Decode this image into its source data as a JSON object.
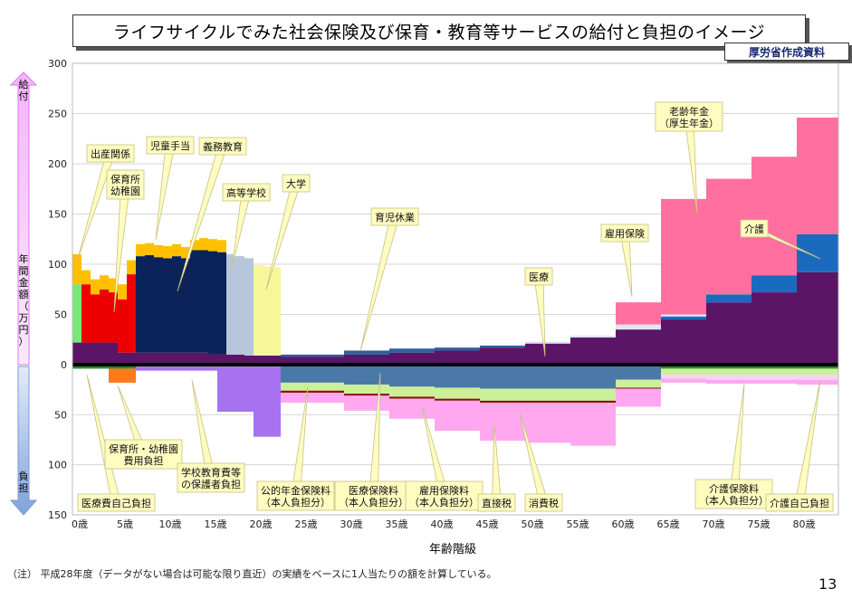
{
  "title": "ライフサイクルでみた社会保険及び保育・教育等サービスの給付と負担のイメージ",
  "source_badge": "厚労省作成資料",
  "footnote": "（注） 平成28年度（データがない場合は可能な限り直近）の実績をベースに1人当たりの額を計算している。",
  "page_number": "13",
  "side_labels": {
    "benefit": "給付",
    "burden": "負担",
    "ylabel": "年間金額（万円）"
  },
  "colors": {
    "childbirth": "#7be57b",
    "nursery": "#ee0000",
    "child_allowance": "#ffc000",
    "compulsory_edu": "#0b2358",
    "high_school": "#b7c5dd",
    "university": "#f7f79a",
    "parental_leave": "#2f5f9e",
    "medical": "#5b1567",
    "employment": "#dfe6f2",
    "pension": "#ff6fa0",
    "care": "#1a6bbe",
    "burden_pension": "#4a79a8",
    "burden_medical": "#ccf09a",
    "burden_employment": "#8b1010",
    "burden_direct_tax": "#ffa8f0",
    "burden_consumption": "#ff8df0",
    "burden_nursery": "#ff7b1a",
    "burden_school": "#a672f0",
    "burden_care_premium": "#f5d3f5",
    "burden_care_copay": "#2a8a2a",
    "benefit_arrow": "#f18cff",
    "burden_arrow": "#a9c0e8"
  },
  "chart_data": {
    "type": "area",
    "title": "ライフサイクルでみた社会保険及び保育・教育等サービスの給付と負担のイメージ",
    "xlabel": "年齢階級",
    "ylabel": "年間金額（万円）",
    "x_ticks": [
      "0歳",
      "5歳",
      "10歳",
      "15歳",
      "20歳",
      "25歳",
      "30歳",
      "35歳",
      "40歳",
      "45歳",
      "50歳",
      "55歳",
      "60歳",
      "65歳",
      "70歳",
      "75歳",
      "80歳"
    ],
    "y_ticks_benefit": [
      "300",
      "250",
      "200",
      "150",
      "100",
      "50",
      "0"
    ],
    "y_ticks_burden": [
      "50",
      "100",
      "150"
    ],
    "ylim": [
      -150,
      300
    ],
    "grid": true,
    "benefits_by_age": [
      {
        "age": 0,
        "medical": 22,
        "childbirth": 58,
        "nursery": 0,
        "child_allowance": 30,
        "compulsory_edu": 0,
        "high_school": 0,
        "university": 0
      },
      {
        "age": 1,
        "medical": 22,
        "childbirth": 0,
        "nursery": 58,
        "child_allowance": 14,
        "compulsory_edu": 0,
        "high_school": 0,
        "university": 0
      },
      {
        "age": 2,
        "medical": 22,
        "childbirth": 0,
        "nursery": 48,
        "child_allowance": 15,
        "compulsory_edu": 0,
        "high_school": 0,
        "university": 0
      },
      {
        "age": 3,
        "medical": 22,
        "childbirth": 0,
        "nursery": 53,
        "child_allowance": 14,
        "compulsory_edu": 0,
        "high_school": 0,
        "university": 0
      },
      {
        "age": 4,
        "medical": 22,
        "childbirth": 0,
        "nursery": 50,
        "child_allowance": 14,
        "compulsory_edu": 0,
        "high_school": 0,
        "university": 0
      },
      {
        "age": 5,
        "medical": 12,
        "childbirth": 0,
        "nursery": 53,
        "child_allowance": 15,
        "compulsory_edu": 0,
        "high_school": 0,
        "university": 0
      },
      {
        "age": 6,
        "medical": 12,
        "childbirth": 0,
        "nursery": 78,
        "child_allowance": 14,
        "compulsory_edu": 0,
        "high_school": 0,
        "university": 0
      },
      {
        "age": 7,
        "medical": 12,
        "childbirth": 0,
        "nursery": 0,
        "child_allowance": 12,
        "compulsory_edu": 96,
        "high_school": 0,
        "university": 0
      },
      {
        "age": 8,
        "medical": 12,
        "childbirth": 0,
        "nursery": 0,
        "child_allowance": 12,
        "compulsory_edu": 97,
        "high_school": 0,
        "university": 0
      },
      {
        "age": 9,
        "medical": 12,
        "childbirth": 0,
        "nursery": 0,
        "child_allowance": 12,
        "compulsory_edu": 95,
        "high_school": 0,
        "university": 0
      },
      {
        "age": 10,
        "medical": 12,
        "childbirth": 0,
        "nursery": 0,
        "child_allowance": 12,
        "compulsory_edu": 94,
        "high_school": 0,
        "university": 0
      },
      {
        "age": 11,
        "medical": 12,
        "childbirth": 0,
        "nursery": 0,
        "child_allowance": 12,
        "compulsory_edu": 96,
        "high_school": 0,
        "university": 0
      },
      {
        "age": 12,
        "medical": 12,
        "childbirth": 0,
        "nursery": 0,
        "child_allowance": 11,
        "compulsory_edu": 94,
        "high_school": 0,
        "university": 0
      },
      {
        "age": 13,
        "medical": 12,
        "childbirth": 0,
        "nursery": 0,
        "child_allowance": 10,
        "compulsory_edu": 102,
        "high_school": 0,
        "university": 0
      },
      {
        "age": 14,
        "medical": 12,
        "childbirth": 0,
        "nursery": 0,
        "child_allowance": 12,
        "compulsory_edu": 102,
        "high_school": 0,
        "university": 0
      },
      {
        "age": 15,
        "medical": 10,
        "childbirth": 0,
        "nursery": 0,
        "child_allowance": 12,
        "compulsory_edu": 103,
        "high_school": 0,
        "university": 0
      },
      {
        "age": 16,
        "medical": 10,
        "childbirth": 0,
        "nursery": 0,
        "child_allowance": 12,
        "compulsory_edu": 102,
        "high_school": 0,
        "university": 0
      },
      {
        "age": 17,
        "medical": 10,
        "childbirth": 0,
        "nursery": 0,
        "child_allowance": 0,
        "compulsory_edu": 0,
        "high_school": 100,
        "university": 0
      },
      {
        "age": 18,
        "medical": 10,
        "childbirth": 0,
        "nursery": 0,
        "child_allowance": 0,
        "compulsory_edu": 0,
        "high_school": 98,
        "university": 0
      },
      {
        "age": 19,
        "medical": 9,
        "childbirth": 0,
        "nursery": 0,
        "child_allowance": 0,
        "compulsory_edu": 0,
        "high_school": 97,
        "university": 0
      },
      {
        "age": 20,
        "medical": 9,
        "childbirth": 0,
        "nursery": 0,
        "child_allowance": 0,
        "compulsory_edu": 0,
        "high_school": 0,
        "university": 90
      },
      {
        "age": 21,
        "medical": 9,
        "childbirth": 0,
        "nursery": 0,
        "child_allowance": 0,
        "compulsory_edu": 0,
        "high_school": 0,
        "university": 89
      },
      {
        "age": 22,
        "medical": 9,
        "childbirth": 0,
        "nursery": 0,
        "child_allowance": 0,
        "compulsory_edu": 0,
        "high_school": 0,
        "university": 88
      }
    ],
    "benefits_by_band": [
      {
        "band": "23-29",
        "medical": 8,
        "parental_leave": 2
      },
      {
        "band": "30-34",
        "medical": 10,
        "parental_leave": 4
      },
      {
        "band": "35-39",
        "medical": 12,
        "parental_leave": 4
      },
      {
        "band": "40-44",
        "medical": 14,
        "parental_leave": 3
      },
      {
        "band": "45-49",
        "medical": 17,
        "parental_leave": 2
      },
      {
        "band": "50-54",
        "medical": 21,
        "employment": 2
      },
      {
        "band": "55-59",
        "medical": 27,
        "employment": 2
      },
      {
        "band": "60-64",
        "medical": 35,
        "employment": 5,
        "pension": 22
      },
      {
        "band": "65-69",
        "medical": 45,
        "employment": 2,
        "care": 3,
        "pension": 115
      },
      {
        "band": "70-74",
        "medical": 62,
        "care": 8,
        "pension": 115
      },
      {
        "band": "75-79",
        "medical": 72,
        "care": 17,
        "pension": 118
      },
      {
        "band": "80+",
        "medical": 92,
        "care": 38,
        "pension": 116
      }
    ],
    "burdens_by_age": [
      {
        "age": "0-4",
        "nursery_fee": 0,
        "medical_copay": 4
      },
      {
        "age": "3-6",
        "nursery_fee": 14,
        "medical_copay": 4
      },
      {
        "age": "7-15",
        "school_fee": 4,
        "medical_copay": 2
      },
      {
        "age": "16-19",
        "school_fee": 45,
        "medical_copay": 2
      },
      {
        "age": "20-22",
        "school_fee": 70,
        "medical_copay": 2
      }
    ],
    "burdens_by_band": [
      {
        "band": "23-29",
        "pension_premium": 18,
        "medical_premium": 8,
        "employment_premium": 2,
        "direct_tax": 10
      },
      {
        "band": "30-34",
        "pension_premium": 20,
        "medical_premium": 9,
        "employment_premium": 2,
        "direct_tax": 15
      },
      {
        "band": "35-39",
        "pension_premium": 22,
        "medical_premium": 10,
        "employment_premium": 2,
        "direct_tax": 20
      },
      {
        "band": "40-44",
        "pension_premium": 23,
        "medical_premium": 11,
        "employment_premium": 2,
        "direct_tax": 30
      },
      {
        "band": "45-49",
        "pension_premium": 24,
        "medical_premium": 12,
        "employment_premium": 2,
        "direct_tax": 38
      },
      {
        "band": "50-54",
        "pension_premium": 24,
        "medical_premium": 12,
        "employment_premium": 2,
        "direct_tax": 40
      },
      {
        "band": "55-59",
        "pension_premium": 24,
        "medical_premium": 12,
        "employment_premium": 2,
        "direct_tax": 43
      },
      {
        "band": "60-64",
        "pension_premium": 15,
        "medical_premium": 8,
        "employment_premium": 1,
        "direct_tax": 18
      },
      {
        "band": "65-69",
        "medical_premium": 6,
        "care_premium": 4,
        "direct_tax": 4,
        "care_copay": 4
      },
      {
        "band": "70-74",
        "medical_premium": 6,
        "care_premium": 5,
        "direct_tax": 4,
        "care_copay": 4
      },
      {
        "band": "75-79",
        "medical_premium": 6,
        "care_premium": 5,
        "direct_tax": 4,
        "care_copay": 4
      },
      {
        "band": "80+",
        "medical_premium": 6,
        "care_premium": 5,
        "direct_tax": 5,
        "care_copay": 4
      }
    ],
    "annotations": {
      "childbirth": "出産関係",
      "nursery_1": "保育所",
      "nursery_2": "幼稚園",
      "child_allowance": "児童手当",
      "compulsory_edu": "義務教育",
      "high_school": "高等学校",
      "university": "大学",
      "parental_leave": "育児休業",
      "medical": "医療",
      "employment": "雇用保険",
      "pension_1": "老齢年金",
      "pension_2": "（厚生年金）",
      "care": "介護",
      "medical_copay": "医療費自己負担",
      "nursery_fee_1": "保育所・幼稚園",
      "nursery_fee_2": "費用負担",
      "school_fee_1": "学校教育費等",
      "school_fee_2": "の保護者負担",
      "pension_premium_1": "公的年金保険料",
      "pension_premium_2": "（本人負担分）",
      "medical_premium_1": "医療保険料",
      "medical_premium_2": "（本人負担分）",
      "employment_premium_1": "雇用保険料",
      "employment_premium_2": "（本人負担分）",
      "direct_tax": "直接税",
      "consumption_tax": "消費税",
      "care_premium_1": "介護保険料",
      "care_premium_2": "（本人負担分）",
      "care_copay": "介護自己負担"
    }
  }
}
